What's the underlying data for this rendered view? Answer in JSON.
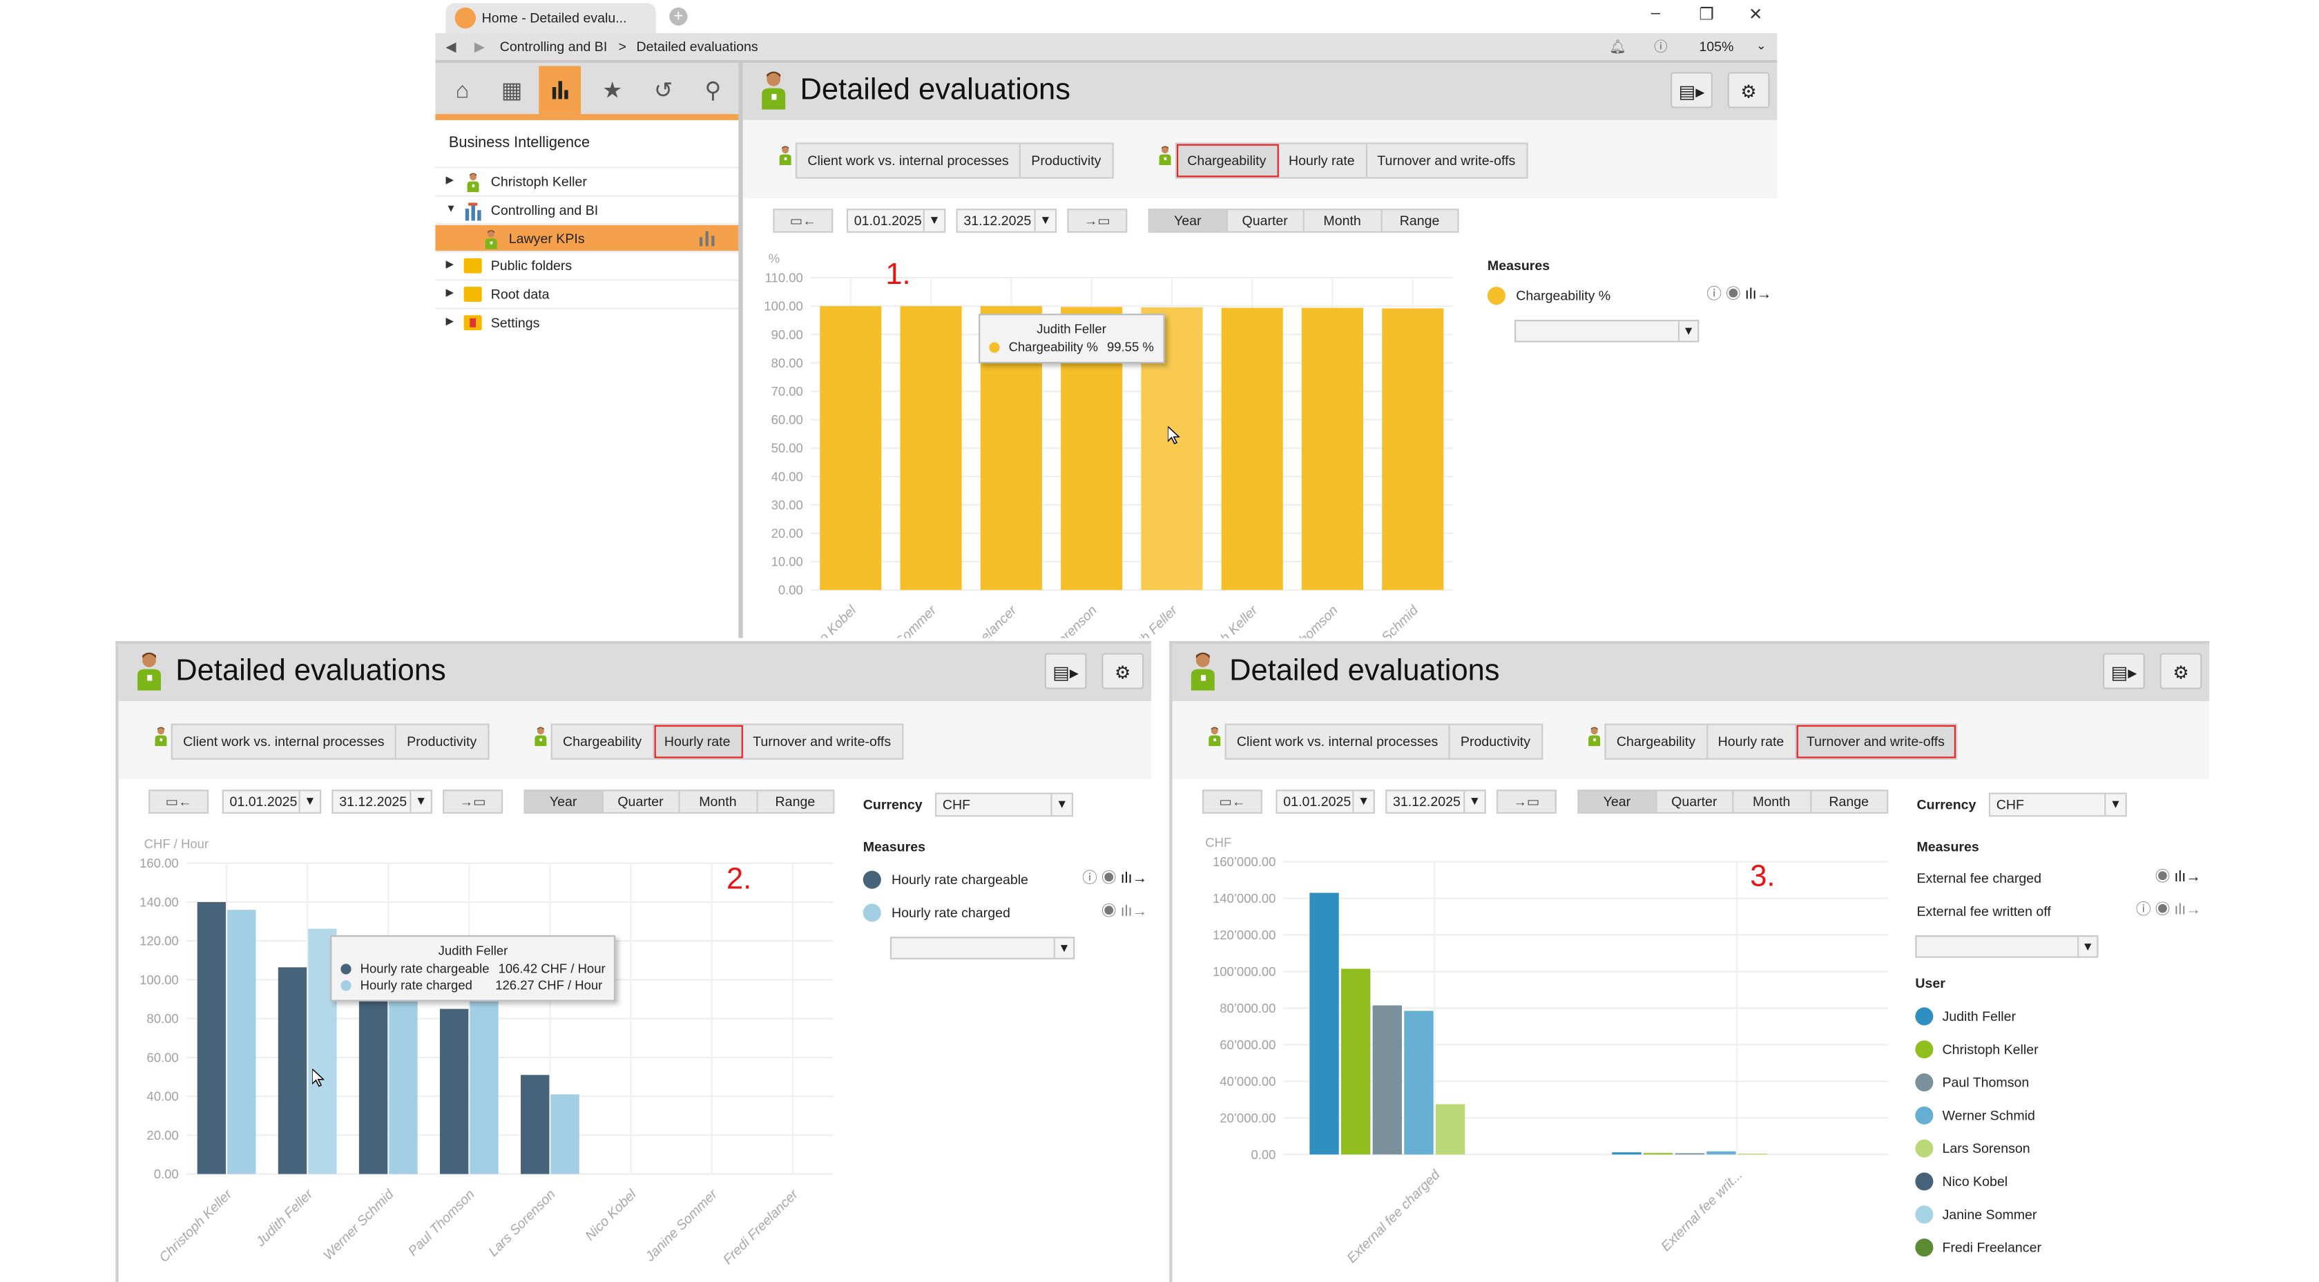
{
  "browser": {
    "tab_title": "Home - Detailed evalu...",
    "breadcrumb": [
      "Controlling and BI",
      "Detailed evaluations"
    ],
    "breadcrumb_separator": ">",
    "zoom": "105%"
  },
  "sidebar": {
    "heading": "Business Intelligence",
    "items": [
      {
        "label": "Christoph Keller",
        "icon": "user-icon",
        "expanded": false
      },
      {
        "label": "Controlling and BI",
        "icon": "bi-chart-icon",
        "expanded": true
      },
      {
        "label": "Lawyer KPIs",
        "icon": "user-icon",
        "selected": true
      },
      {
        "label": "Public folders",
        "icon": "folder-icon",
        "expanded": false
      },
      {
        "label": "Root data",
        "icon": "folder-icon",
        "expanded": false
      },
      {
        "label": "Settings",
        "icon": "settings-folder-icon",
        "expanded": false
      }
    ]
  },
  "panels": [
    {
      "title": "Detailed evaluations",
      "tab_groups": [
        [
          "Client work vs. internal processes",
          "Productivity"
        ],
        [
          "Chargeability",
          "Hourly rate",
          "Turnover and write-offs"
        ]
      ],
      "active_tab": "Chargeability",
      "date_from": "01.01.2025",
      "date_to": "31.12.2025",
      "periods": [
        "Year",
        "Quarter",
        "Month",
        "Range"
      ],
      "active_period": "Year",
      "measures_label": "Measures",
      "measures": [
        {
          "label": "Chargeability %",
          "color": "#f6be28",
          "info": true
        }
      ],
      "tooltip": {
        "title": "Judith Feller",
        "rows": [
          {
            "label": "Chargeability %",
            "value": "99.55 %",
            "color": "#f6be28"
          }
        ]
      },
      "annotation": "1."
    },
    {
      "title": "Detailed evaluations",
      "tab_groups": [
        [
          "Client work vs. internal processes",
          "Productivity"
        ],
        [
          "Chargeability",
          "Hourly rate",
          "Turnover and write-offs"
        ]
      ],
      "active_tab": "Hourly rate",
      "date_from": "01.01.2025",
      "date_to": "31.12.2025",
      "periods": [
        "Year",
        "Quarter",
        "Month",
        "Range"
      ],
      "active_period": "Year",
      "currency_label": "Currency",
      "currency": "CHF",
      "measures_label": "Measures",
      "measures": [
        {
          "label": "Hourly rate chargeable",
          "color": "#47637a",
          "info": true
        },
        {
          "label": "Hourly rate charged",
          "color": "#a3cfe4",
          "info": false
        }
      ],
      "tooltip": {
        "title": "Judith Feller",
        "rows": [
          {
            "label": "Hourly rate chargeable",
            "value": "106.42 CHF / Hour",
            "color": "#47637a"
          },
          {
            "label": "Hourly rate charged",
            "value": "126.27 CHF / Hour",
            "color": "#a3cfe4"
          }
        ]
      },
      "annotation": "2."
    },
    {
      "title": "Detailed evaluations",
      "tab_groups": [
        [
          "Client work vs. internal processes",
          "Productivity"
        ],
        [
          "Chargeability",
          "Hourly rate",
          "Turnover and write-offs"
        ]
      ],
      "active_tab": "Turnover and write-offs",
      "date_from": "01.01.2025",
      "date_to": "31.12.2025",
      "periods": [
        "Year",
        "Quarter",
        "Month",
        "Range"
      ],
      "active_period": "Year",
      "currency_label": "Currency",
      "currency": "CHF",
      "measures_label": "Measures",
      "measures": [
        {
          "label": "External fee charged",
          "info": false
        },
        {
          "label": "External fee written off",
          "info": true
        }
      ],
      "user_label": "User",
      "annotation": "3."
    }
  ],
  "chart_data": [
    {
      "type": "bar",
      "ylabel": "%",
      "ylim": [
        0,
        110
      ],
      "y_ticks": [
        0,
        10,
        20,
        30,
        40,
        50,
        60,
        70,
        80,
        90,
        100,
        110
      ],
      "y_tick_labels": [
        "0.00",
        "10.00",
        "20.00",
        "30.00",
        "40.00",
        "50.00",
        "60.00",
        "70.00",
        "80.00",
        "90.00",
        "100.00",
        "110.00"
      ],
      "categories": [
        "Nico Kobel",
        "Janine Sommer",
        "Fredi Freelancer",
        "Lars Sorenson",
        "Judith Feller",
        "Christoph Keller",
        "Paul Thomson",
        "Werner Schmid"
      ],
      "series": [
        {
          "name": "Chargeability %",
          "color": "#f6be28",
          "values": [
            100,
            100,
            100,
            99.7,
            99.55,
            99.4,
            99.4,
            99.2
          ]
        }
      ],
      "grid": true
    },
    {
      "type": "bar",
      "ylabel": "CHF / Hour",
      "ylim": [
        0,
        160
      ],
      "y_ticks": [
        0,
        20,
        40,
        60,
        80,
        100,
        120,
        140,
        160
      ],
      "y_tick_labels": [
        "0.00",
        "20.00",
        "40.00",
        "60.00",
        "80.00",
        "100.00",
        "120.00",
        "140.00",
        "160.00"
      ],
      "categories": [
        "Christoph Keller",
        "Judith Feller",
        "Werner Schmid",
        "Paul Thomson",
        "Lars Sorenson",
        "Nico Kobel",
        "Janine Sommer",
        "Fredi Freelancer"
      ],
      "series": [
        {
          "name": "Hourly rate chargeable",
          "color": "#47637a",
          "values": [
            140,
            106.42,
            91,
            85,
            51,
            0,
            0,
            0
          ]
        },
        {
          "name": "Hourly rate charged",
          "color": "#a3cfe4",
          "values": [
            136,
            126.27,
            90,
            89,
            41,
            0,
            0,
            0
          ]
        }
      ],
      "grid": true
    },
    {
      "type": "bar",
      "ylabel": "CHF",
      "ylim": [
        0,
        160000
      ],
      "y_ticks": [
        0,
        20000,
        40000,
        60000,
        80000,
        100000,
        120000,
        140000,
        160000
      ],
      "y_tick_labels": [
        "0.00",
        "20’000.00",
        "40’000.00",
        "60’000.00",
        "80’000.00",
        "100’000.00",
        "120’000.00",
        "140’000.00",
        "160’000.00"
      ],
      "categories": [
        "External fee charged",
        "External fee writ..."
      ],
      "series": [
        {
          "name": "Judith Feller",
          "color": "#2e8fc0",
          "values": [
            143000,
            1200
          ]
        },
        {
          "name": "Christoph Keller",
          "color": "#8fbe1e",
          "values": [
            101500,
            800
          ]
        },
        {
          "name": "Paul Thomson",
          "color": "#7a909c",
          "values": [
            81500,
            700
          ]
        },
        {
          "name": "Werner Schmid",
          "color": "#66afd2",
          "values": [
            78500,
            1700
          ]
        },
        {
          "name": "Lars Sorenson",
          "color": "#bcd977",
          "values": [
            27500,
            500
          ]
        },
        {
          "name": "Nico Kobel",
          "color": "#47637a",
          "values": [
            0,
            0
          ]
        },
        {
          "name": "Janine Sommer",
          "color": "#a6d3e6",
          "values": [
            0,
            0
          ]
        },
        {
          "name": "Fredi Freelancer",
          "color": "#5a8a32",
          "values": [
            0,
            0
          ]
        }
      ],
      "legend": "right",
      "grid": true
    }
  ]
}
